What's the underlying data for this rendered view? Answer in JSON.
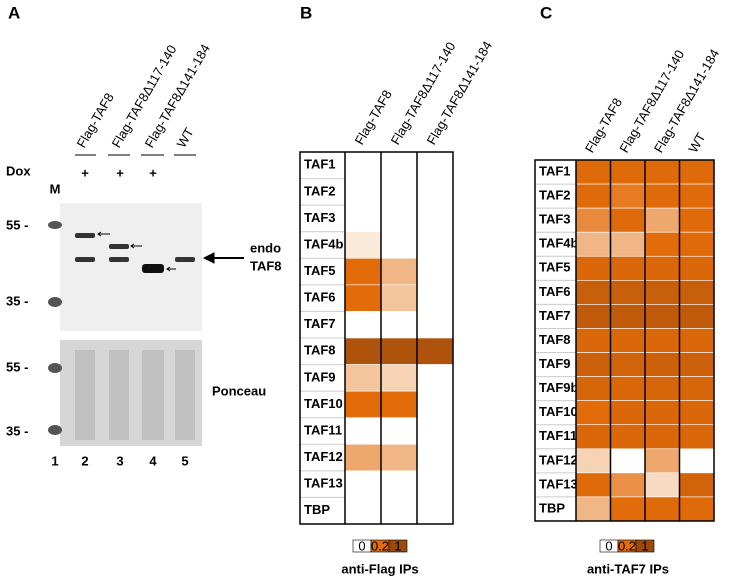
{
  "panels": {
    "a": {
      "letter": "A",
      "lanes": [
        "Flag-TAF8",
        "Flag-TAF8Δ117-140",
        "Flag-TAF8Δ141-184",
        "WT"
      ],
      "dox_label": "Dox",
      "dox": [
        "+",
        "+",
        "+"
      ],
      "marker_label": "M",
      "blot_markers": [
        "55 -",
        "35 -"
      ],
      "endo_label": [
        "endo",
        "TAF8"
      ],
      "ponceau_markers": [
        "55 -",
        "35 -"
      ],
      "ponceau_label": "Ponceau",
      "lane_numbers": [
        "1",
        "2",
        "3",
        "4",
        "5"
      ]
    },
    "b": {
      "letter": "B",
      "columns": [
        "Flag-TAF8",
        "Flag-TAF8Δ117-140",
        "Flag-TAF8Δ141-184"
      ],
      "rows": [
        "TAF1",
        "TAF2",
        "TAF3",
        "TAF4b",
        "TAF5",
        "TAF6",
        "TAF7",
        "TAF8",
        "TAF9",
        "TAF10",
        "TAF11",
        "TAF12",
        "TAF13",
        "TBP"
      ],
      "values": [
        [
          0,
          0,
          0
        ],
        [
          0,
          0,
          0
        ],
        [
          0,
          0,
          0
        ],
        [
          0.03,
          0,
          0
        ],
        [
          0.2,
          0.1,
          0
        ],
        [
          0.2,
          0.08,
          0
        ],
        [
          0,
          0,
          0
        ],
        [
          0.8,
          0.8,
          0.8
        ],
        [
          0.08,
          0.06,
          0
        ],
        [
          0.2,
          0.2,
          0
        ],
        [
          0,
          0,
          0
        ],
        [
          0.12,
          0.1,
          0
        ],
        [
          0,
          0,
          0
        ],
        [
          0,
          0,
          0
        ]
      ],
      "scale": [
        0,
        0.2,
        1
      ],
      "scale_colors": [
        "#ffffff",
        "#e36c0a",
        "#9b4a0c"
      ],
      "caption": "anti-Flag IPs"
    },
    "c": {
      "letter": "C",
      "columns": [
        "Flag-TAF8",
        "Flag-TAF8Δ117-140",
        "Flag-TAF8Δ141-184",
        "WT"
      ],
      "rows": [
        "TAF1",
        "TAF2",
        "TAF3",
        "TAF4b",
        "TAF5",
        "TAF6",
        "TAF7",
        "TAF8",
        "TAF9",
        "TAF9b",
        "TAF10",
        "TAF11",
        "TAF12",
        "TAF13",
        "TBP"
      ],
      "values": [
        [
          0.25,
          0.25,
          0.25,
          0.25
        ],
        [
          0.25,
          0.18,
          0.25,
          0.25
        ],
        [
          0.16,
          0.25,
          0.12,
          0.25
        ],
        [
          0.1,
          0.1,
          0.2,
          0.25
        ],
        [
          0.3,
          0.3,
          0.3,
          0.3
        ],
        [
          0.5,
          0.5,
          0.5,
          0.5
        ],
        [
          0.6,
          0.6,
          0.6,
          0.6
        ],
        [
          0.3,
          0.3,
          0.3,
          0.3
        ],
        [
          0.45,
          0.4,
          0.45,
          0.45
        ],
        [
          0.35,
          0.3,
          0.35,
          0.35
        ],
        [
          0.2,
          0.3,
          0.3,
          0.3
        ],
        [
          0.3,
          0.3,
          0.3,
          0.3
        ],
        [
          0.06,
          0,
          0.12,
          0
        ],
        [
          0.25,
          0.15,
          0.05,
          0.4
        ],
        [
          0.1,
          0.2,
          0.25,
          0.25
        ]
      ],
      "scale": [
        0,
        0.2,
        1
      ],
      "scale_colors": [
        "#ffffff",
        "#e36c0a",
        "#9b4a0c"
      ],
      "caption": "anti-TAF7 IPs"
    }
  }
}
